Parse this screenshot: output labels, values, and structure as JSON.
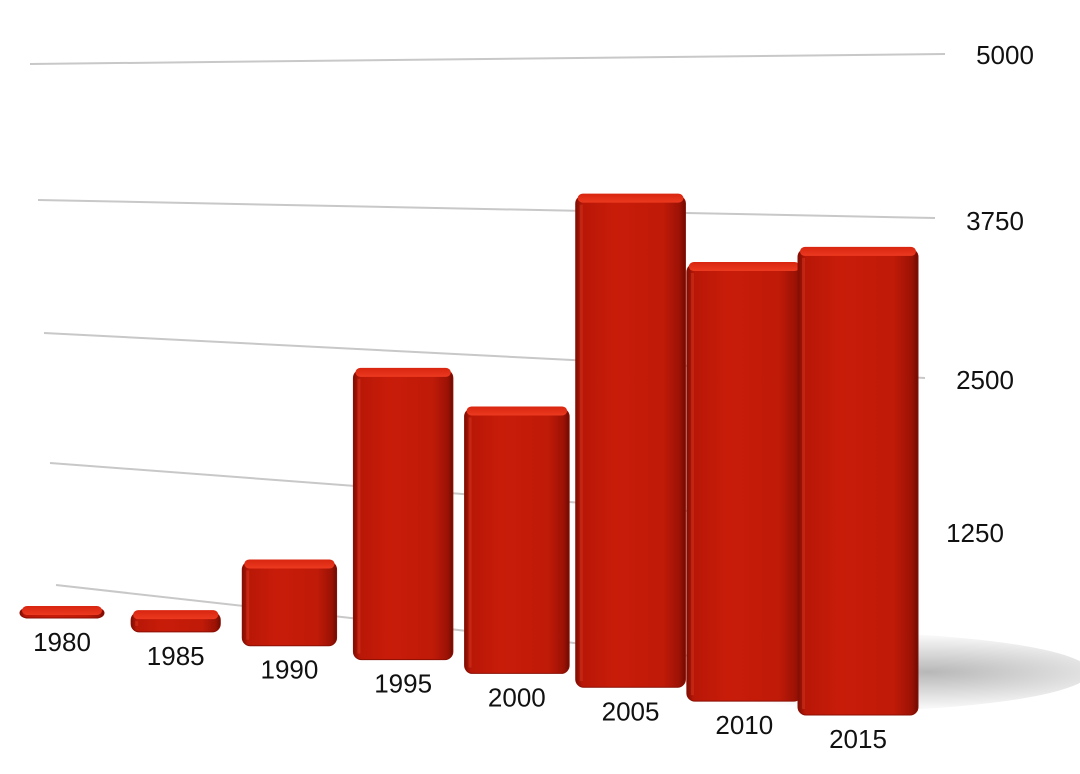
{
  "chart_data": {
    "type": "bar",
    "categories": [
      "1980",
      "1985",
      "1990",
      "1995",
      "2000",
      "2005",
      "2010",
      "2015"
    ],
    "values": [
      40,
      180,
      760,
      2580,
      2330,
      4270,
      3750,
      3950
    ],
    "yticks": [
      "5000",
      "3750",
      "2500",
      "1250"
    ],
    "ylim": [
      0,
      5000
    ],
    "grid": true,
    "style": "3d",
    "colors": {
      "bar": "#c41a08",
      "bar_top": "#e0301a",
      "bar_edge": "#8a0f04",
      "gridline": "#c8c8c8"
    }
  }
}
